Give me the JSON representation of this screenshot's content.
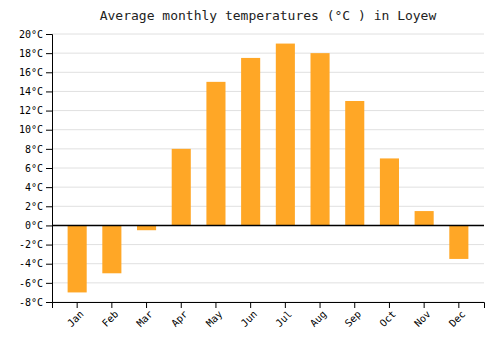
{
  "chart_data": {
    "type": "bar",
    "title": "Average monthly temperatures (°C ) in Loyew",
    "categories": [
      "Jan",
      "Feb",
      "Mar",
      "Apr",
      "May",
      "Jun",
      "Jul",
      "Aug",
      "Sep",
      "Oct",
      "Nov",
      "Dec"
    ],
    "values": [
      -7.0,
      -5.0,
      -0.5,
      8.0,
      15.0,
      17.5,
      19.0,
      18.0,
      13.0,
      7.0,
      1.5,
      -3.5
    ],
    "color": "#FFA726",
    "ylim": [
      -8,
      20
    ],
    "yticks": [
      {
        "value": -8,
        "label": "-8°C"
      },
      {
        "value": -6,
        "label": "-6°C"
      },
      {
        "value": -4,
        "label": "-4°C"
      },
      {
        "value": -2,
        "label": "-2°C"
      },
      {
        "value": 0,
        "label": "0°C"
      },
      {
        "value": 2,
        "label": "2°C"
      },
      {
        "value": 4,
        "label": "4°C"
      },
      {
        "value": 6,
        "label": "6°C"
      },
      {
        "value": 8,
        "label": "8°C"
      },
      {
        "value": 10,
        "label": "10°C"
      },
      {
        "value": 12,
        "label": "12°C"
      },
      {
        "value": 14,
        "label": "14°C"
      },
      {
        "value": 16,
        "label": "16°C"
      },
      {
        "value": 18,
        "label": "18°C"
      },
      {
        "value": 20,
        "label": "20°C"
      }
    ],
    "grid": true
  }
}
